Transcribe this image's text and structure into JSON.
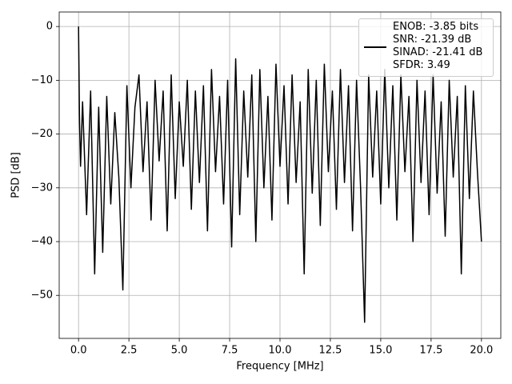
{
  "chart_data": {
    "type": "line",
    "xlabel": "Frequency [MHz]",
    "ylabel": "PSD [dB]",
    "x": [
      0,
      0.05,
      0.1,
      0.2,
      0.4,
      0.6,
      0.8,
      1.0,
      1.2,
      1.4,
      1.6,
      1.8,
      2.0,
      2.2,
      2.4,
      2.6,
      2.8,
      3.0,
      3.2,
      3.4,
      3.6,
      3.8,
      4.0,
      4.2,
      4.4,
      4.6,
      4.8,
      5.0,
      5.2,
      5.4,
      5.6,
      5.8,
      6.0,
      6.2,
      6.4,
      6.6,
      6.8,
      7.0,
      7.2,
      7.4,
      7.6,
      7.8,
      8.0,
      8.2,
      8.4,
      8.6,
      8.8,
      9.0,
      9.2,
      9.4,
      9.6,
      9.8,
      10.0,
      10.2,
      10.4,
      10.6,
      10.8,
      11.0,
      11.2,
      11.4,
      11.6,
      11.8,
      12.0,
      12.2,
      12.4,
      12.6,
      12.8,
      13.0,
      13.2,
      13.4,
      13.6,
      13.8,
      14.0,
      14.2,
      14.4,
      14.6,
      14.8,
      15.0,
      15.2,
      15.4,
      15.6,
      15.8,
      16.0,
      16.2,
      16.4,
      16.6,
      16.8,
      17.0,
      17.2,
      17.4,
      17.6,
      17.8,
      18.0,
      18.2,
      18.4,
      18.6,
      18.8,
      19.0,
      19.2,
      19.4,
      19.6,
      19.8,
      20.0
    ],
    "series": [
      {
        "name": "ENOB: -3.85 bits\nSNR: -21.39 dB\nSINAD: -21.41 dB\nSFDR: 3.49",
        "color": "#000000",
        "values": [
          0,
          -18,
          -26,
          -14,
          -35,
          -12,
          -46,
          -15,
          -42,
          -13,
          -33,
          -16,
          -28,
          -49,
          -11,
          -30,
          -15,
          -9,
          -27,
          -14,
          -36,
          -10,
          -25,
          -12,
          -38,
          -9,
          -32,
          -14,
          -26,
          -10,
          -34,
          -12,
          -29,
          -11,
          -38,
          -8,
          -27,
          -13,
          -33,
          -10,
          -41,
          -6,
          -35,
          -12,
          -28,
          -9,
          -40,
          -8,
          -30,
          -13,
          -36,
          -7,
          -26,
          -11,
          -33,
          -9,
          -29,
          -14,
          -46,
          -8,
          -31,
          -10,
          -37,
          -7,
          -27,
          -12,
          -34,
          -8,
          -29,
          -11,
          -38,
          -10,
          -30,
          -55,
          -9,
          -28,
          -12,
          -33,
          -8,
          -30,
          -11,
          -36,
          -9,
          -27,
          -13,
          -40,
          -10,
          -29,
          -12,
          -35,
          -9,
          -31,
          -14,
          -39,
          -10,
          -28,
          -13,
          -46,
          -11,
          -32,
          -12,
          -27,
          -40
        ]
      }
    ],
    "xlim": [
      -0.96,
      20.96
    ],
    "xticks": [
      {
        "value": 0,
        "label": "0.0"
      },
      2.5,
      {
        "value": 5,
        "label": "5.0"
      },
      7.5,
      {
        "value": 10,
        "label": "10.0"
      },
      12.5,
      {
        "value": 15,
        "label": "15.0"
      },
      17.5,
      {
        "value": 20,
        "label": "20.0"
      }
    ],
    "ylim": [
      -58.0,
      2.7
    ],
    "yticks": [
      {
        "value": 0,
        "label": "0"
      },
      {
        "value": -10,
        "label": "−10"
      },
      {
        "value": -20,
        "label": "−20"
      },
      {
        "value": -30,
        "label": "−30"
      },
      {
        "value": -40,
        "label": "−40"
      },
      {
        "value": -50,
        "label": "−50"
      }
    ],
    "grid": true,
    "legend": "upper right"
  }
}
